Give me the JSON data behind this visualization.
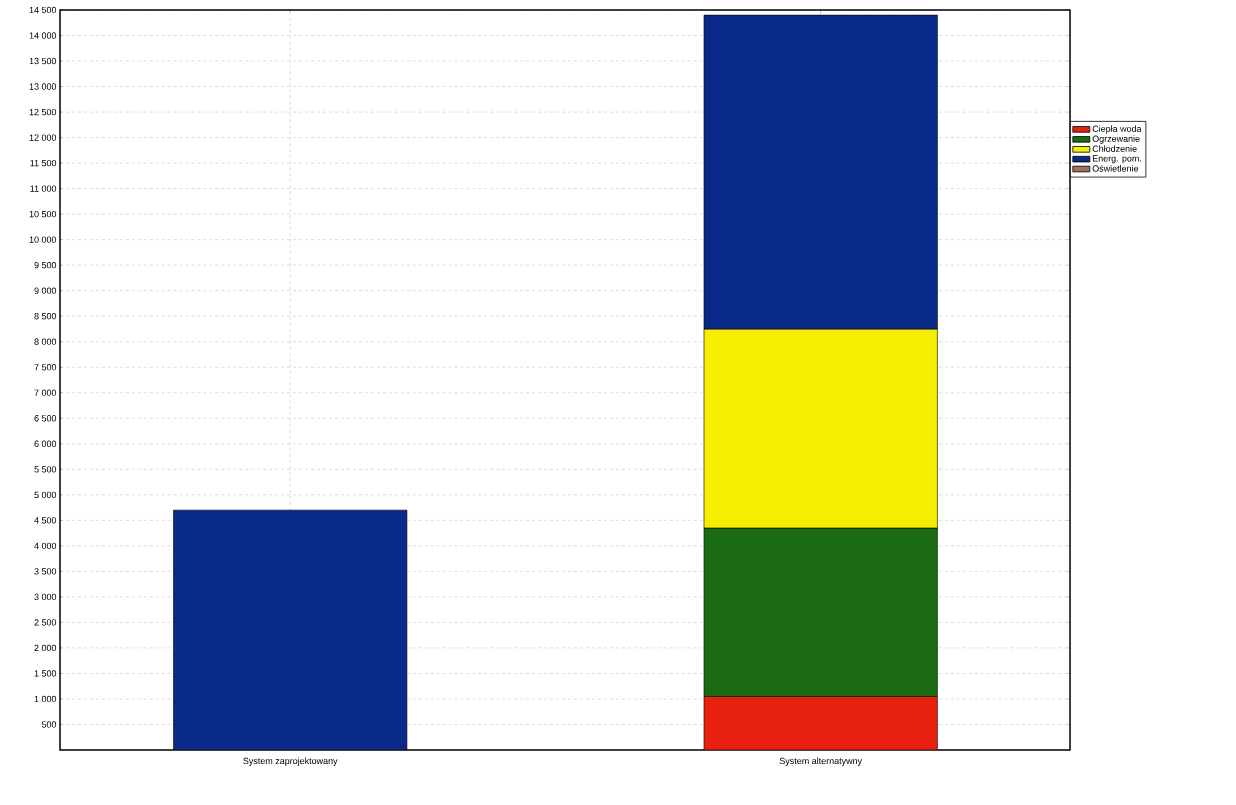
{
  "chart_data": {
    "type": "bar",
    "stacked": true,
    "categories": [
      "System zaprojektowany",
      "System alternatywny"
    ],
    "series": [
      {
        "name": "Ciepła woda",
        "color": "#e8200f",
        "values": [
          null,
          1050
        ]
      },
      {
        "name": "Ogrzewanie",
        "color": "#1a6b12",
        "values": [
          null,
          3300
        ]
      },
      {
        "name": "Chłodzenie",
        "color": "#f5ee00",
        "values": [
          null,
          3900
        ]
      },
      {
        "name": "Energ. pom.",
        "color": "#0a2a8a",
        "values": [
          4700,
          6150
        ]
      },
      {
        "name": "Oświetlenie",
        "color": "#a0705a",
        "values": [
          null,
          null
        ]
      }
    ],
    "ylim": [
      0,
      14500
    ],
    "yticks": [
      {
        "value": 500,
        "label": "500"
      },
      {
        "value": 1000,
        "label": "1 000"
      },
      {
        "value": 1500,
        "label": "1 500"
      },
      {
        "value": 2000,
        "label": "2 000"
      },
      {
        "value": 2500,
        "label": "2 500"
      },
      {
        "value": 3000,
        "label": "3 000"
      },
      {
        "value": 3500,
        "label": "3 500"
      },
      {
        "value": 4000,
        "label": "4 000"
      },
      {
        "value": 4500,
        "label": "4 500"
      },
      {
        "value": 5000,
        "label": "5 000"
      },
      {
        "value": 5500,
        "label": "5 500"
      },
      {
        "value": 6000,
        "label": "6 000"
      },
      {
        "value": 6500,
        "label": "6 500"
      },
      {
        "value": 7000,
        "label": "7 000"
      },
      {
        "value": 7500,
        "label": "7 500"
      },
      {
        "value": 8000,
        "label": "8 000"
      },
      {
        "value": 8500,
        "label": "8 500"
      },
      {
        "value": 9000,
        "label": "9 000"
      },
      {
        "value": 9500,
        "label": "9 500"
      },
      {
        "value": 10000,
        "label": "10 000"
      },
      {
        "value": 10500,
        "label": "10 500"
      },
      {
        "value": 11000,
        "label": "11 000"
      },
      {
        "value": 11500,
        "label": "11 500"
      },
      {
        "value": 12000,
        "label": "12 000"
      },
      {
        "value": 12500,
        "label": "12 500"
      },
      {
        "value": 13000,
        "label": "13 000"
      },
      {
        "value": 13500,
        "label": "13 500"
      },
      {
        "value": 14000,
        "label": "14 000"
      },
      {
        "value": 14500,
        "label": "14 500"
      }
    ],
    "grid": true,
    "legend": "top right"
  }
}
